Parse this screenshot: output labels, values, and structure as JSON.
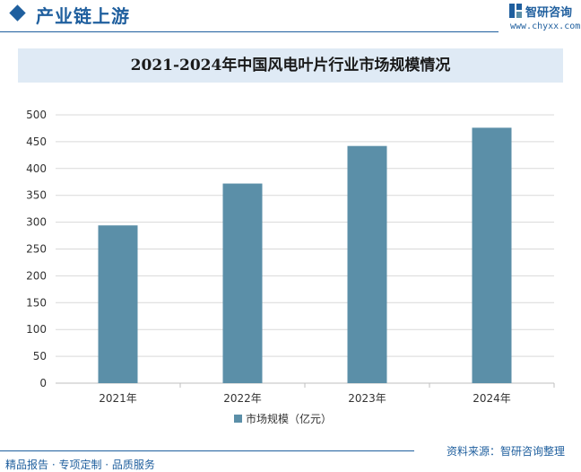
{
  "header": {
    "title": "产业链上游",
    "brand_name": "智研咨询",
    "brand_url": "www.chyxx.com"
  },
  "chart_data": {
    "type": "bar",
    "title": "2021-2024年中国风电叶片行业市场规模情况",
    "categories": [
      "2021年",
      "2022年",
      "2023年",
      "2024年"
    ],
    "series": [
      {
        "name": "市场规模（亿元）",
        "values": [
          294,
          372,
          442,
          476
        ]
      }
    ],
    "xlabel": "",
    "ylabel": "",
    "ylim": [
      0,
      500
    ],
    "y_ticks": [
      "0",
      "50",
      "100",
      "150",
      "200",
      "250",
      "300",
      "350",
      "400",
      "450",
      "500"
    ],
    "grid": true,
    "legend_position": "bottom",
    "colors": {
      "bar": "#5b8fa8",
      "grid": "#d9d9d9",
      "axis": "#bfbfbf",
      "tick_text": "#333333"
    }
  },
  "footer": {
    "services": "精品报告 · 专项定制 · 品质服务",
    "source": "资料来源：智研咨询整理"
  },
  "colors": {
    "brand": "#1f5f9e",
    "title_band": "#dfeaf5"
  }
}
